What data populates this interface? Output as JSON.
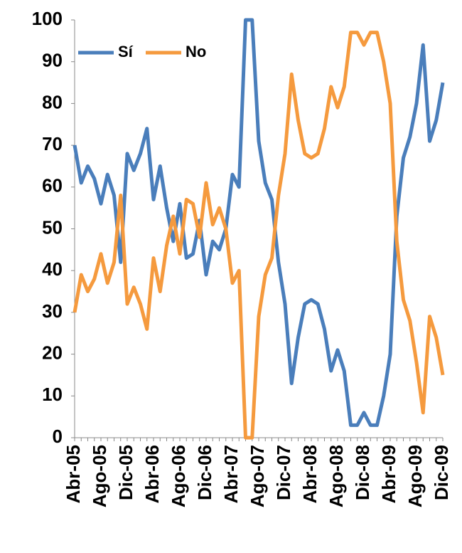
{
  "chart_data": {
    "type": "line",
    "categories": [
      "Abr-05",
      null,
      null,
      null,
      "Ago-05",
      null,
      null,
      null,
      "Dic-05",
      null,
      null,
      null,
      "Abr-06",
      null,
      null,
      null,
      "Ago-06",
      null,
      null,
      null,
      "Dic-06",
      null,
      null,
      null,
      "Abr-07",
      null,
      null,
      null,
      "Ago-07",
      null,
      null,
      null,
      "Dic-07",
      null,
      null,
      null,
      "Abr-08",
      null,
      null,
      null,
      "Ago-08",
      null,
      null,
      null,
      "Dic-08",
      null,
      null,
      null,
      "Abr-09",
      null,
      null,
      null,
      "Ago-09",
      null,
      null,
      null,
      "Dic-09"
    ],
    "series": [
      {
        "name": "Sí",
        "color": "#4a7ebb",
        "values": [
          70,
          61,
          65,
          62,
          56,
          63,
          58,
          42,
          68,
          64,
          68,
          74,
          57,
          65,
          55,
          47,
          56,
          43,
          44,
          52,
          39,
          47,
          45,
          50,
          63,
          60,
          100,
          100,
          71,
          61,
          57,
          42,
          32,
          13,
          24,
          32,
          33,
          32,
          26,
          16,
          21,
          16,
          3,
          3,
          6,
          3,
          3,
          10,
          20,
          53,
          67,
          72,
          80,
          94,
          71,
          76,
          85
        ]
      },
      {
        "name": "No",
        "color": "#f59a3e",
        "values": [
          30,
          39,
          35,
          38,
          44,
          37,
          42,
          58,
          32,
          36,
          32,
          26,
          43,
          35,
          46,
          53,
          44,
          57,
          56,
          48,
          61,
          51,
          55,
          50,
          37,
          40,
          0,
          0,
          29,
          39,
          43,
          58,
          68,
          87,
          76,
          68,
          67,
          68,
          74,
          84,
          79,
          84,
          97,
          97,
          94,
          97,
          97,
          90,
          80,
          47,
          33,
          28,
          18,
          6,
          29,
          24,
          15
        ]
      }
    ],
    "ylim": [
      0,
      100
    ],
    "yticks": [
      0,
      10,
      20,
      30,
      40,
      50,
      60,
      70,
      80,
      90,
      100
    ],
    "grid": false,
    "legend": "top-left"
  }
}
